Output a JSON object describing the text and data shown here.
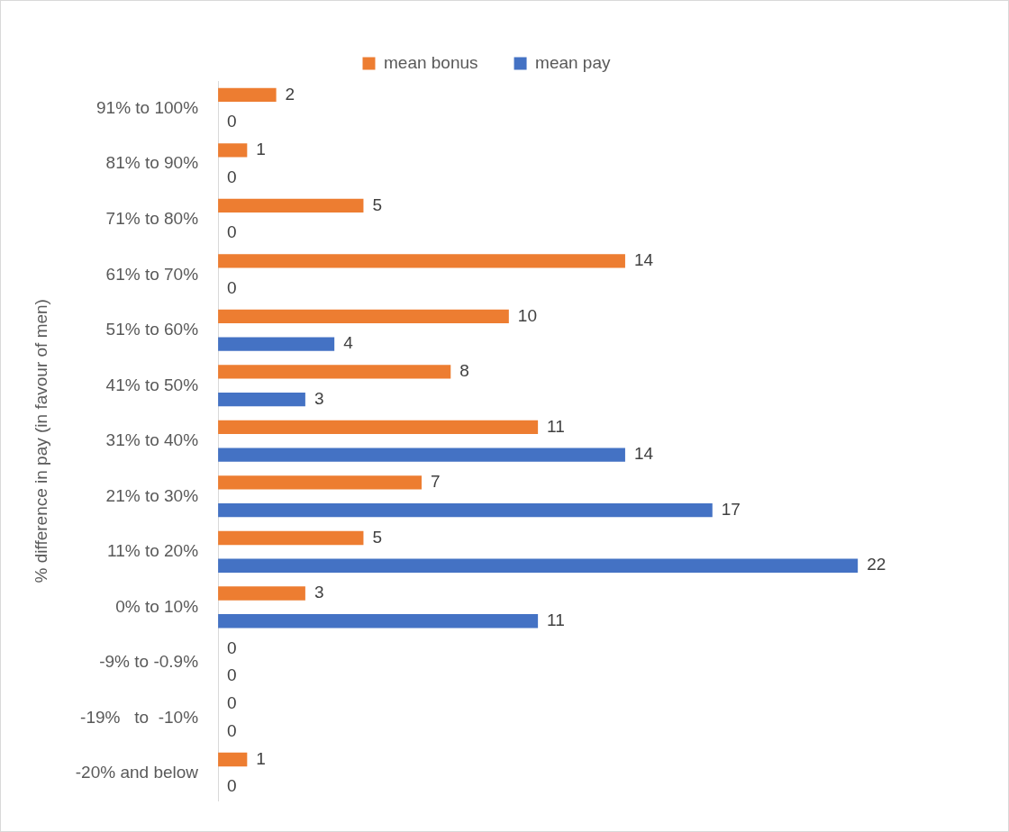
{
  "chart_data": {
    "type": "bar",
    "orientation": "horizontal",
    "ylabel": "% difference in pay (in favour of men)",
    "categories": [
      "91% to 100%",
      "81% to 90%",
      "71% to 80%",
      "61% to 70%",
      "51% to 60%",
      "41% to 50%",
      "31% to 40%",
      "21% to 30%",
      "11% to 20%",
      "0% to 10%",
      "-9% to -0.9%",
      "-19%   to  -10%",
      "-20% and below"
    ],
    "series": [
      {
        "name": "mean bonus",
        "color": "#ed7d31",
        "values": [
          2,
          1,
          5,
          14,
          10,
          8,
          11,
          7,
          5,
          3,
          0,
          0,
          1
        ]
      },
      {
        "name": "mean pay",
        "color": "#4472c4",
        "values": [
          0,
          0,
          0,
          0,
          4,
          3,
          14,
          17,
          22,
          11,
          0,
          0,
          0
        ]
      }
    ],
    "tick_labels": "y",
    "data_labels": true,
    "legend": "top",
    "grid": false
  }
}
